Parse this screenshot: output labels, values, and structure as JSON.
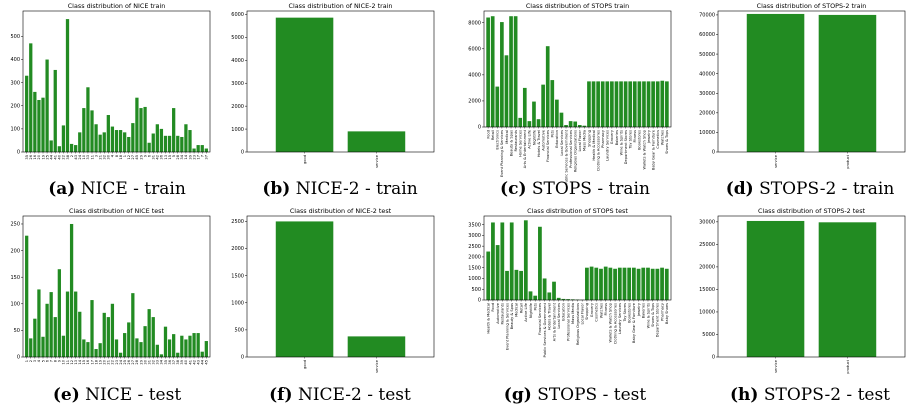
{
  "figure": {
    "bar_color": "#228b22",
    "frame_color": "#000000"
  },
  "chart_data": [
    {
      "id": "a",
      "type": "bar",
      "title": "Class distribution of NICE train",
      "caption_label": "(a)",
      "caption_text": "NICE - train",
      "ylim": [
        0,
        610
      ],
      "yticks": [
        0,
        100,
        200,
        300,
        400,
        500
      ],
      "categories": [
        "35",
        "26",
        "16",
        "20",
        "19",
        "25",
        "44",
        "41",
        "40",
        "22",
        "38",
        "2",
        "43",
        "24",
        "10",
        "33",
        "11",
        "3",
        "21",
        "32",
        "30",
        "4",
        "8",
        "18",
        "1",
        "12",
        "27",
        "45",
        "29",
        "9",
        "6",
        "31",
        "42",
        "36",
        "13",
        "15",
        "5",
        "28",
        "34",
        "14",
        "39",
        "23",
        "17",
        "7",
        "37"
      ],
      "values": [
        330,
        470,
        260,
        225,
        235,
        400,
        50,
        355,
        25,
        115,
        575,
        35,
        30,
        85,
        190,
        280,
        180,
        120,
        75,
        85,
        160,
        110,
        95,
        95,
        85,
        65,
        125,
        235,
        190,
        195,
        40,
        80,
        120,
        100,
        70,
        70,
        190,
        70,
        65,
        120,
        95,
        15,
        30,
        30,
        15
      ]
    },
    {
      "id": "b",
      "type": "bar",
      "title": "Class distribution of NICE-2 train",
      "caption_label": "(b)",
      "caption_text": "NICE-2 - train",
      "ylim": [
        0,
        6150
      ],
      "yticks": [
        0,
        1000,
        2000,
        3000,
        4000,
        5000,
        6000
      ],
      "categories": [
        "good",
        "service"
      ],
      "values": [
        5860,
        900
      ]
    },
    {
      "id": "c",
      "type": "bar",
      "title": "Class distribution of STOPS train",
      "caption_label": "(c)",
      "caption_text": "STOPS - train",
      "ylim": [
        0,
        8900
      ],
      "yticks": [
        0,
        2000,
        4000,
        6000,
        8000
      ],
      "categories": [
        "Food",
        "Retail",
        "Electronics",
        "Event Planning & Services",
        "Medical",
        "Beauty & Spas",
        "Restaurants",
        "Home Services",
        "Arts & Entertainment",
        "Active Life",
        "Nightlife",
        "Hotels & Travel",
        "Automotive",
        "Financial Services",
        "Pets",
        "Education",
        "Local Services",
        "Public Services & Government",
        "Professional Services",
        "Religious Organizations",
        "Local Flavor",
        "Mass Media",
        "Shopping",
        "Health & Medical",
        "Clothing & Accessories",
        "Pharmacy",
        "Laundry Services",
        "Grocery",
        "Bakeries",
        "Wine & Spirits",
        "Department Stores",
        "Toy Stores",
        "Fitness",
        "Bookstores",
        "Wallets & Watch Shop",
        "Jewelry",
        "Baby Gear & Furniture",
        "Cosmetics",
        "Watches",
        "Shoes & Tops"
      ],
      "values": [
        8400,
        8500,
        3100,
        8050,
        5500,
        8500,
        8500,
        700,
        3000,
        450,
        1950,
        600,
        3250,
        6200,
        3600,
        2100,
        1100,
        150,
        450,
        420,
        150,
        100,
        3500,
        3500,
        3500,
        3500,
        3500,
        3500,
        3500,
        3500,
        3500,
        3500,
        3500,
        3500,
        3500,
        3500,
        3500,
        3500,
        3550,
        3500
      ]
    },
    {
      "id": "d",
      "type": "bar",
      "title": "Class distribution of STOPS-2 train",
      "caption_label": "(d)",
      "caption_text": "STOPS-2 - train",
      "ylim": [
        0,
        72000
      ],
      "yticks": [
        0,
        10000,
        20000,
        30000,
        40000,
        50000,
        60000,
        70000
      ],
      "categories": [
        "service",
        "product"
      ],
      "values": [
        70500,
        70000
      ]
    },
    {
      "id": "e",
      "type": "bar",
      "title": "Class distribution of NICE test",
      "caption_label": "(e)",
      "caption_text": "NICE - test",
      "ylim": [
        0,
        265
      ],
      "yticks": [
        0,
        50,
        100,
        150,
        200,
        250
      ],
      "categories": [
        "1",
        "2",
        "3",
        "4",
        "5",
        "6",
        "7",
        "8",
        "9",
        "10",
        "11",
        "12",
        "13",
        "14",
        "15",
        "16",
        "17",
        "18",
        "19",
        "20",
        "21",
        "22",
        "23",
        "24",
        "25",
        "26",
        "27",
        "28",
        "29",
        "30",
        "31",
        "32",
        "33",
        "34",
        "35",
        "36",
        "37",
        "38",
        "39",
        "40",
        "41",
        "42",
        "43",
        "44",
        "45"
      ],
      "values": [
        228,
        35,
        72,
        127,
        38,
        100,
        122,
        75,
        165,
        40,
        123,
        250,
        123,
        85,
        33,
        28,
        107,
        15,
        26,
        83,
        75,
        100,
        33,
        8,
        45,
        65,
        120,
        35,
        28,
        58,
        90,
        75,
        23,
        5,
        57,
        33,
        43,
        8,
        40,
        33,
        40,
        45,
        45,
        10,
        30
      ]
    },
    {
      "id": "f",
      "type": "bar",
      "title": "Class distribution of NICE-2 test",
      "caption_label": "(f)",
      "caption_text": "NICE-2 - test",
      "ylim": [
        0,
        2600
      ],
      "yticks": [
        0,
        500,
        1000,
        1500,
        2000,
        2500
      ],
      "categories": [
        "good",
        "service"
      ],
      "values": [
        2500,
        380
      ]
    },
    {
      "id": "g",
      "type": "bar",
      "title": "Class distribution of STOPS test",
      "caption_label": "(g)",
      "caption_text": "STOPS - test",
      "ylim": [
        0,
        3900
      ],
      "yticks": [
        0,
        500,
        1000,
        1500,
        2000,
        2500,
        3000,
        3500
      ],
      "categories": [
        "Health & Medical",
        "Food",
        "Automotive",
        "Restaurants",
        "Event Planning & Services",
        "Beauty & Spas",
        "Medical",
        "Retail",
        "Active Life",
        "Nightlife",
        "Pets",
        "Financial Services",
        "Public Services & Government",
        "Hotels & Travel",
        "Arts & Entertainment",
        "Local Services",
        "Education",
        "Professional Services",
        "Mass Media",
        "Religious Organizations",
        "Local Flavor",
        "Shopping",
        "Grocery",
        "Cosmetics",
        "Watches",
        "Fitness",
        "Wallets & Watch Shop",
        "Clothing & Accessories",
        "Laundry Services",
        "Toy Stores",
        "Bookstores",
        "Baby Gear & Furniture",
        "Jewelry",
        "Bakeries",
        "Wine & Spirits",
        "Shoes & Tops",
        "Department Stores",
        "Pharmacy",
        "Baby Shoes"
      ],
      "values": [
        2250,
        3600,
        2550,
        3600,
        1350,
        3600,
        1400,
        1350,
        3700,
        400,
        200,
        3400,
        1000,
        350,
        850,
        100,
        50,
        40,
        30,
        20,
        10,
        1500,
        1550,
        1500,
        1450,
        1550,
        1500,
        1450,
        1500,
        1500,
        1500,
        1500,
        1450,
        1500,
        1500,
        1450,
        1450,
        1500,
        1450
      ]
    },
    {
      "id": "h",
      "type": "bar",
      "title": "Class distribution of STOPS-2 test",
      "caption_label": "(h)",
      "caption_text": "STOPS-2 - test",
      "ylim": [
        0,
        31300
      ],
      "yticks": [
        0,
        5000,
        10000,
        15000,
        20000,
        25000,
        30000
      ],
      "categories": [
        "service",
        "product"
      ],
      "values": [
        30200,
        29900
      ]
    }
  ]
}
